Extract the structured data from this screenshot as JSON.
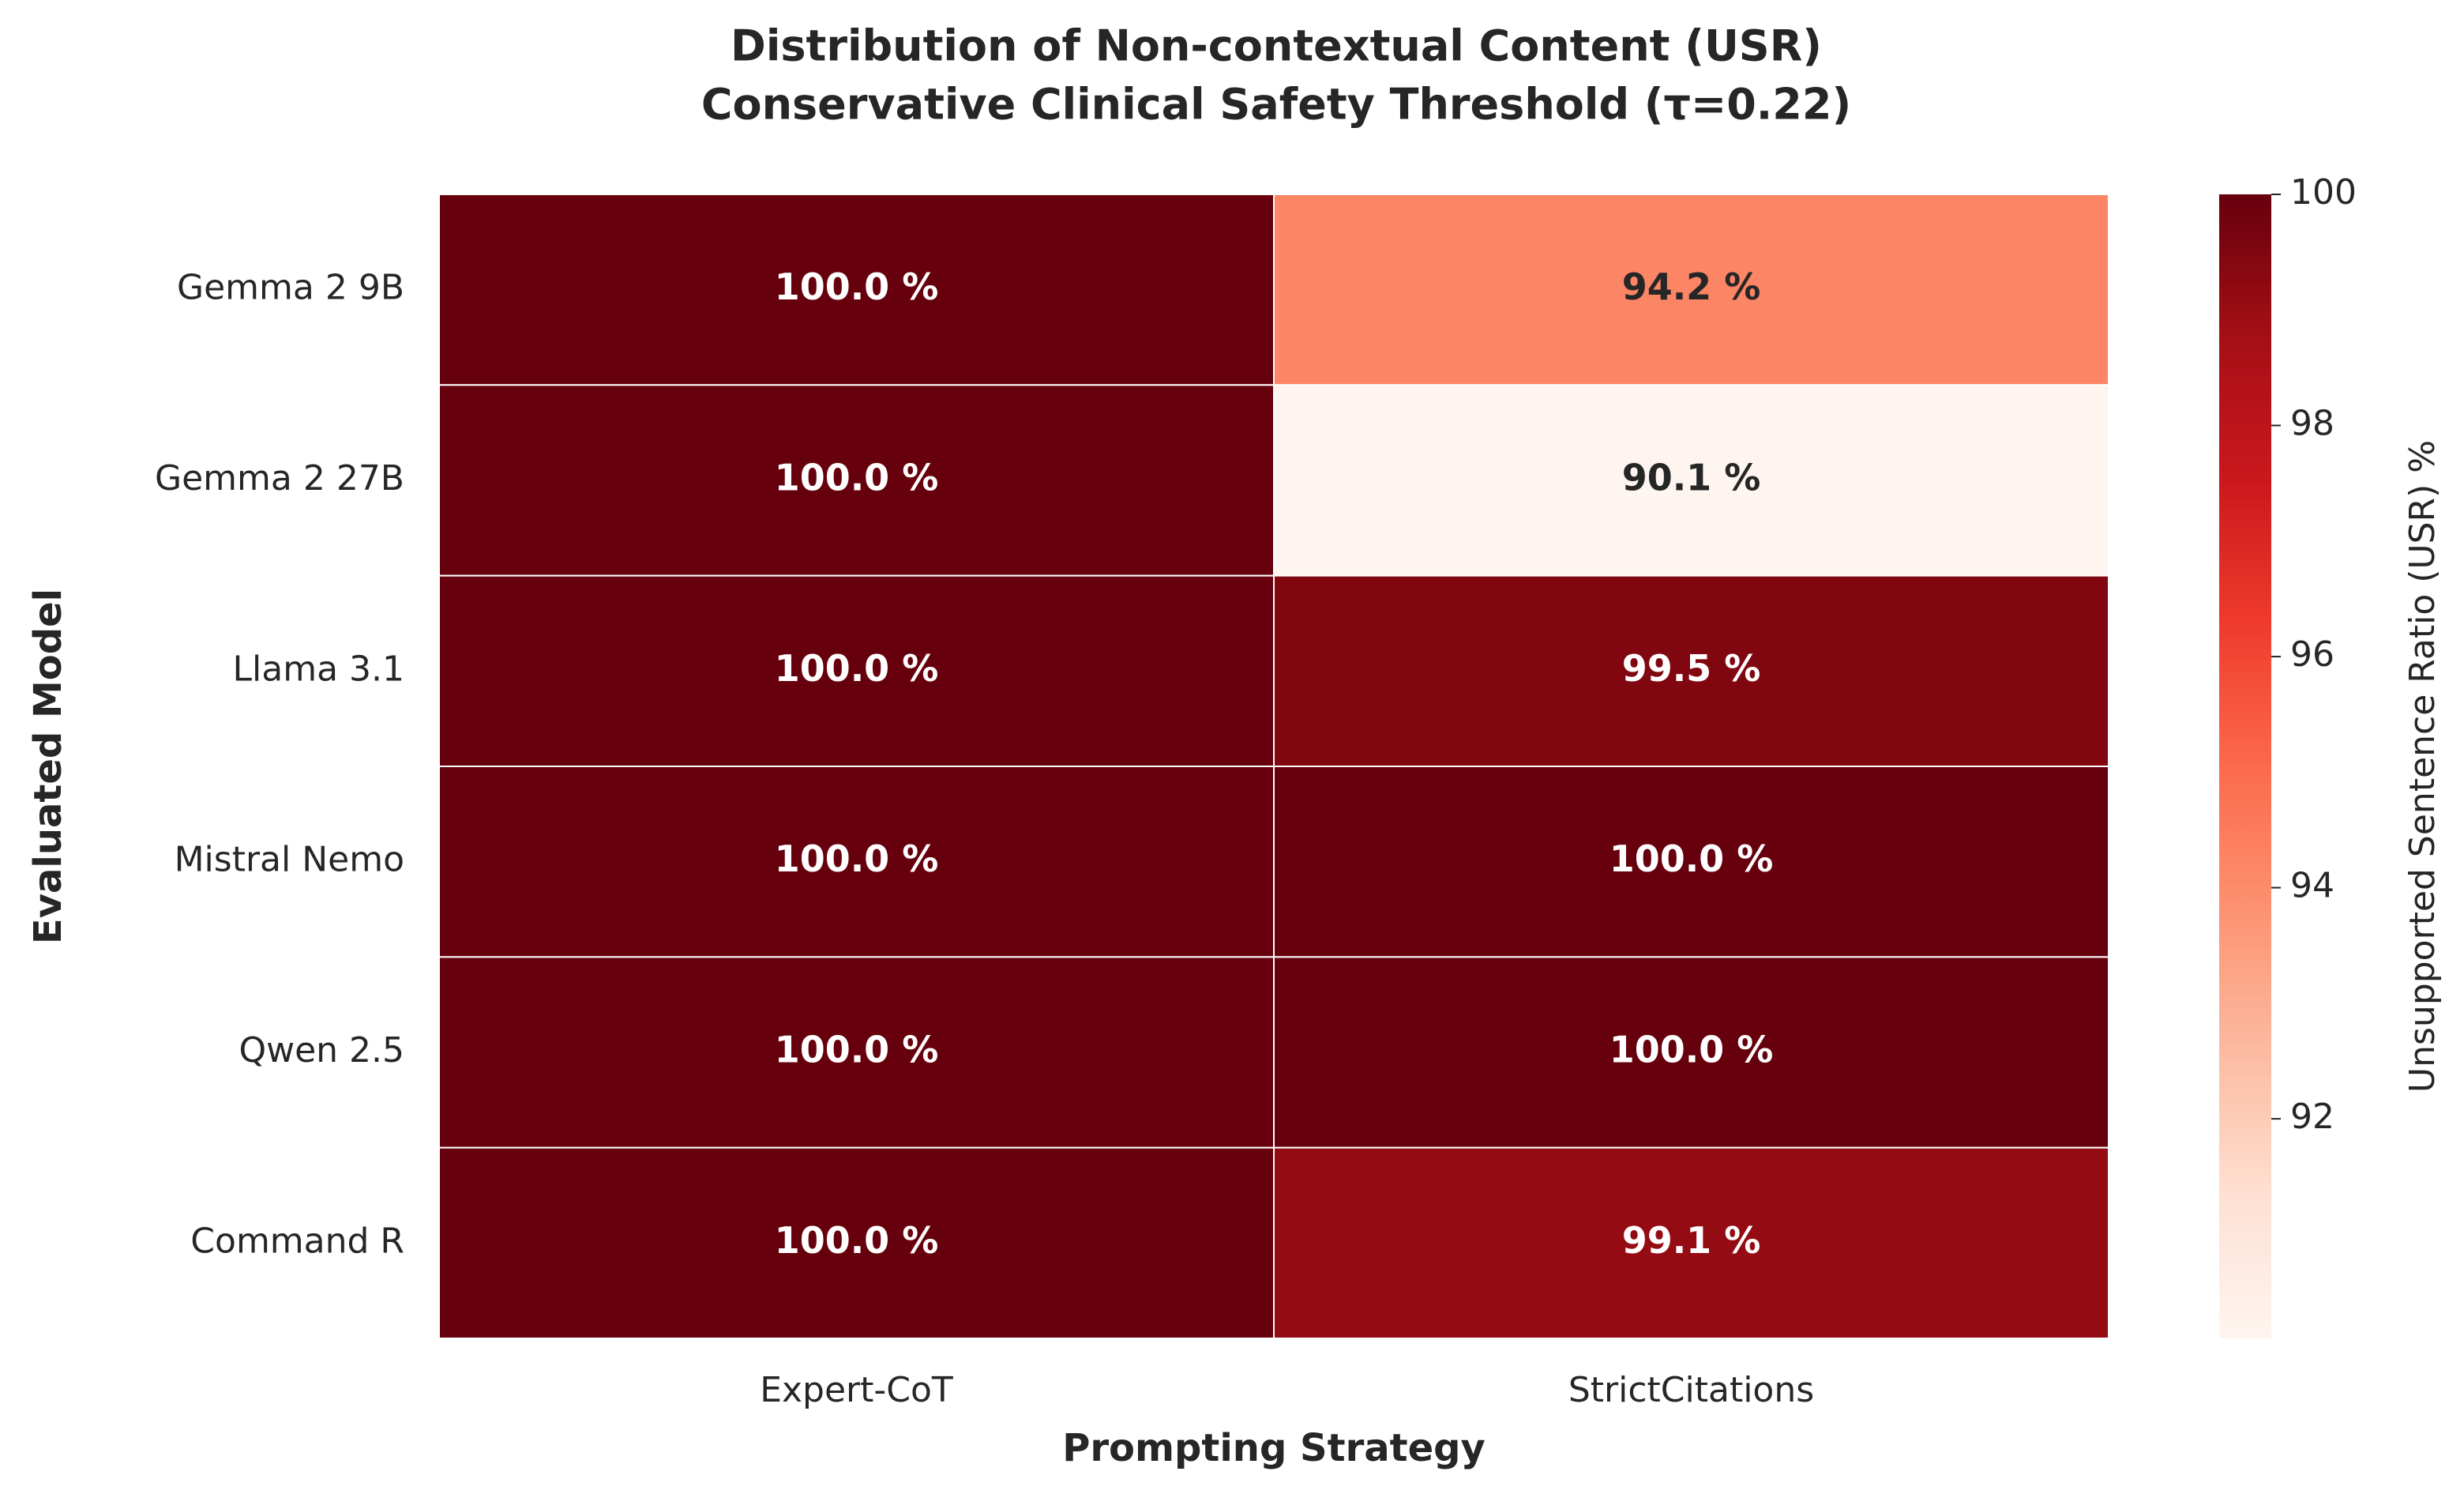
{
  "chart_data": {
    "type": "heatmap",
    "title": "Distribution of Non-contextual Content (USR)",
    "subtitle": "Conservative Clinical Safety Threshold (τ=0.22)",
    "x_label": "Prompting Strategy",
    "y_label": "Evaluated Model",
    "colorbar_label": "Unsupported Sentence Ratio (USR) %",
    "colormap": "Reds",
    "columns": [
      "Expert-CoT",
      "StrictCitations"
    ],
    "rows": [
      "Gemma 2 9B",
      "Gemma 2 27B",
      "Llama 3.1",
      "Mistral Nemo",
      "Qwen 2.5",
      "Command R"
    ],
    "values": [
      [
        100.0,
        94.2
      ],
      [
        100.0,
        90.1
      ],
      [
        100.0,
        99.5
      ],
      [
        100.0,
        100.0
      ],
      [
        100.0,
        100.0
      ],
      [
        100.0,
        99.1
      ]
    ],
    "value_labels": [
      [
        "100.0 %",
        "94.2 %"
      ],
      [
        "100.0 %",
        "90.1 %"
      ],
      [
        "100.0 %",
        "99.5 %"
      ],
      [
        "100.0 %",
        "100.0 %"
      ],
      [
        "100.0 %",
        "100.0 %"
      ],
      [
        "100.0 %",
        "99.1 %"
      ]
    ],
    "clim": [
      90.1,
      100
    ],
    "cticks": [
      92,
      94,
      96,
      98,
      100
    ]
  }
}
